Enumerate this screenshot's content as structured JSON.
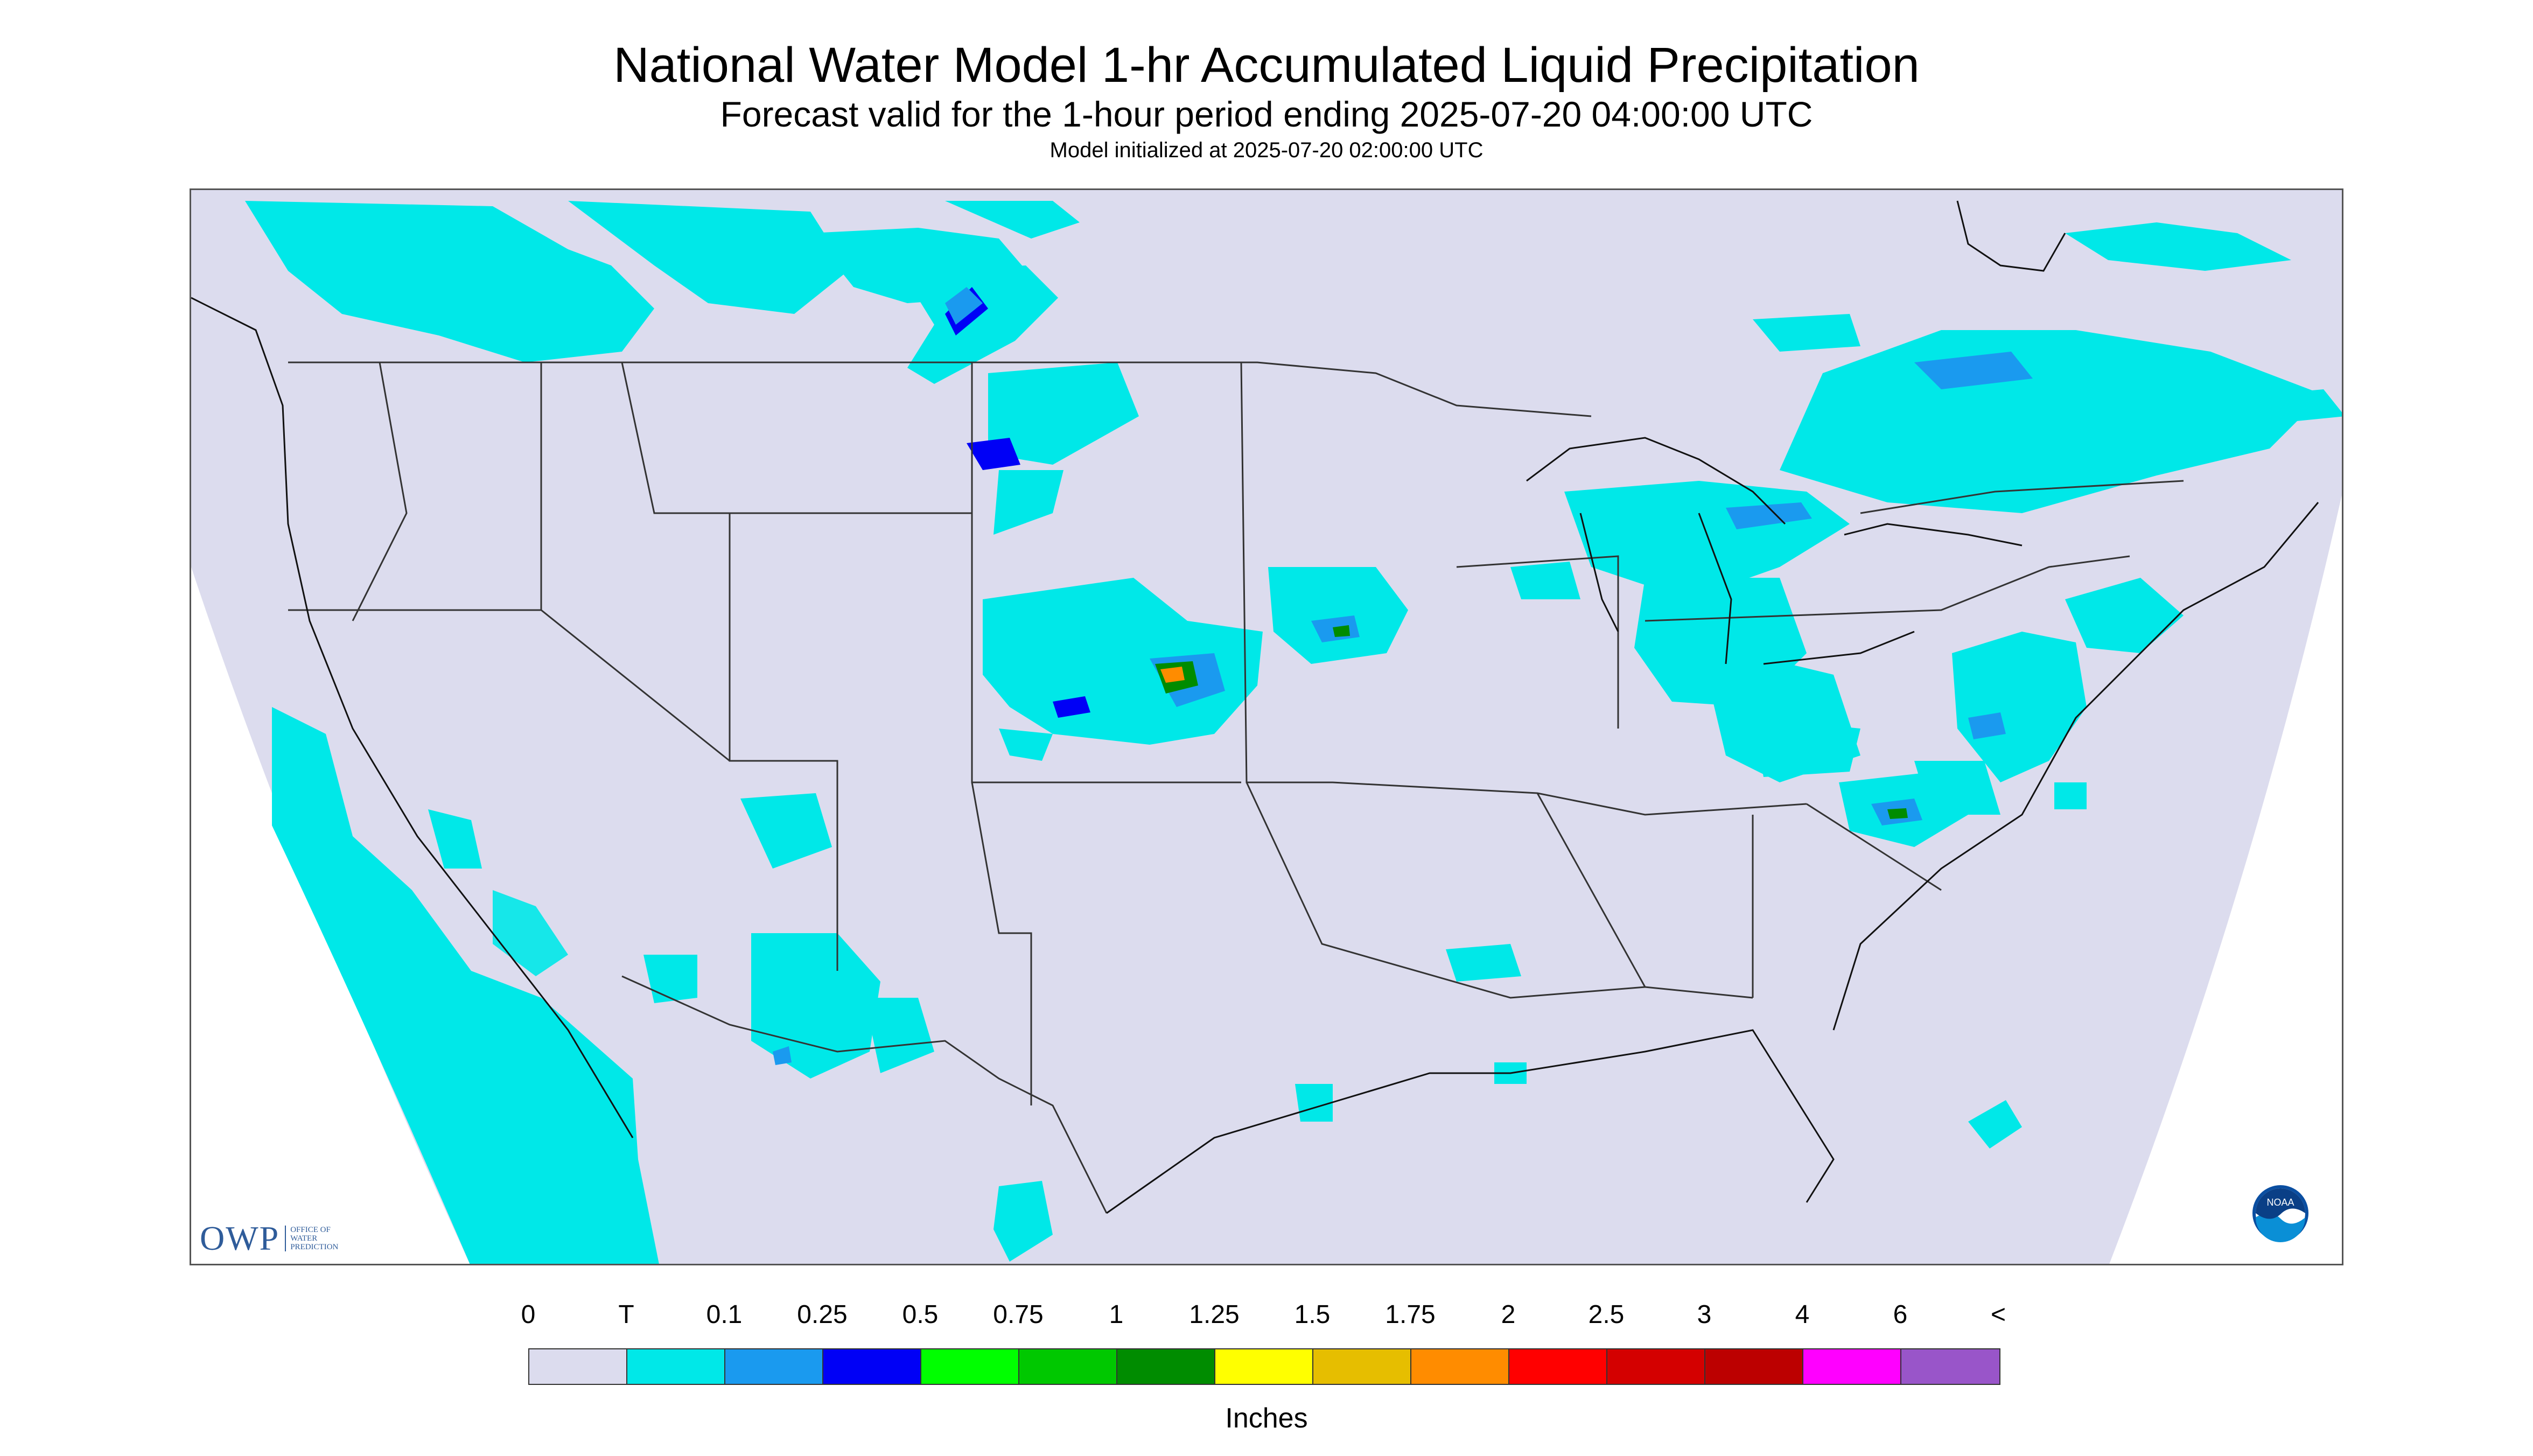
{
  "header": {
    "title": "National Water Model 1-hr Accumulated Liquid Precipitation",
    "subtitle": "Forecast valid for the 1-hour period ending 2025-07-20 04:00:00 UTC",
    "init": "Model initialized at 2025-07-20 02:00:00 UTC"
  },
  "map": {
    "background_color": "#dcdcee",
    "outside_color": "#ffffff",
    "border_color": "#333333"
  },
  "logos": {
    "owp_mark": "OWP",
    "owp_lines": [
      "Office of",
      "Water",
      "Prediction"
    ],
    "noaa": "NOAA"
  },
  "legend": {
    "labels": [
      "0",
      "T",
      "0.1",
      "0.25",
      "0.5",
      "0.75",
      "1",
      "1.25",
      "1.5",
      "1.75",
      "2",
      "2.5",
      "3",
      "4",
      "6",
      "<"
    ],
    "colors": [
      "#dcdcee",
      "#00e8e8",
      "#1a9aef",
      "#0000f6",
      "#00ff00",
      "#00c800",
      "#008c00",
      "#ffff00",
      "#e6be00",
      "#ff8c00",
      "#ff0000",
      "#d40000",
      "#bc0000",
      "#ff00ff",
      "#9955c9"
    ],
    "units": "Inches"
  },
  "precip_areas": [
    {
      "name": "pacific-northwest-canada",
      "level": "T"
    },
    {
      "name": "montana-north-dakota",
      "level": "0.5"
    },
    {
      "name": "nebraska-south-dakota",
      "level": "1.5"
    },
    {
      "name": "iowa",
      "level": "1"
    },
    {
      "name": "great-lakes",
      "level": "0.25"
    },
    {
      "name": "quebec-ontario",
      "level": "0.25"
    },
    {
      "name": "mid-atlantic",
      "level": "0.25"
    },
    {
      "name": "north-carolina",
      "level": "1"
    },
    {
      "name": "west-coast-ocean",
      "level": "T"
    },
    {
      "name": "southwest",
      "level": "0.25"
    },
    {
      "name": "gulf",
      "level": "T"
    },
    {
      "name": "atlantic",
      "level": "0.1"
    }
  ]
}
